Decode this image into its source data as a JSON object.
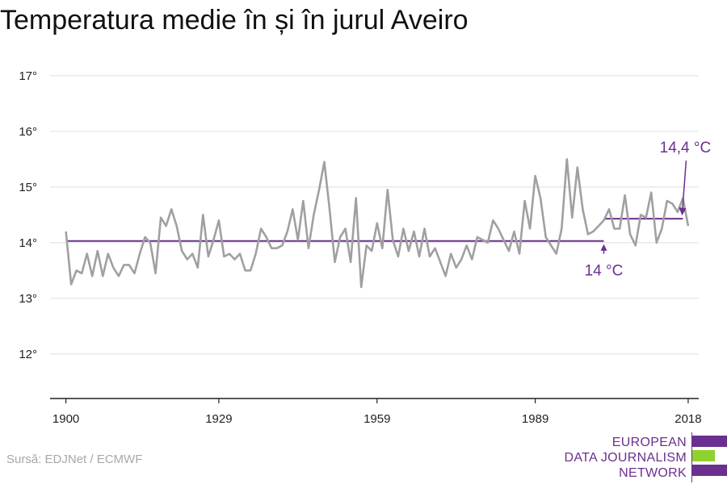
{
  "title": "Temperatura medie în și în jurul Aveiro",
  "source": "Sursă: EDJNet / ECMWF",
  "logo": {
    "lines": [
      "EUROPEAN",
      "DATA JOURNALISM",
      "NETWORK"
    ],
    "colors": {
      "purple": "#6b2f8f",
      "green": "#8fd12f"
    }
  },
  "chart_data": {
    "type": "line",
    "title": "Temperatura medie în și în jurul Aveiro",
    "xlabel": "",
    "ylabel": "",
    "xlim": [
      1897,
      2020
    ],
    "ylim": [
      11.2,
      17.2
    ],
    "x_ticks": [
      1900,
      1929,
      1959,
      1989,
      2018
    ],
    "x_tick_labels": [
      "1900",
      "1929",
      "1959",
      "1989",
      "2018"
    ],
    "y_ticks": [
      12,
      13,
      14,
      15,
      16,
      17
    ],
    "y_tick_labels": [
      "12°",
      "13°",
      "14°",
      "15°",
      "16°",
      "17°"
    ],
    "grid": "horizontal",
    "colors": {
      "series": "#a0a0a0",
      "annotation": "#6b2f8f"
    },
    "series": [
      {
        "x": [
          1900,
          1901,
          1902,
          1903,
          1904,
          1905,
          1906,
          1907,
          1908,
          1909,
          1910,
          1911,
          1912,
          1913,
          1914,
          1915,
          1916,
          1917,
          1918,
          1919,
          1920,
          1921,
          1922,
          1923,
          1924,
          1925,
          1926,
          1927,
          1928,
          1929,
          1930,
          1931,
          1932,
          1933,
          1934,
          1935,
          1936,
          1937,
          1938,
          1939,
          1940,
          1941,
          1942,
          1943,
          1944,
          1945,
          1946,
          1947,
          1948,
          1949,
          1950,
          1951,
          1952,
          1953,
          1954,
          1955,
          1956,
          1957,
          1958,
          1959,
          1960,
          1961,
          1962,
          1963,
          1964,
          1965,
          1966,
          1967,
          1968,
          1969,
          1970,
          1971,
          1972,
          1973,
          1974,
          1975,
          1976,
          1977,
          1978,
          1979,
          1980,
          1981,
          1982,
          1983,
          1984,
          1985,
          1986,
          1987,
          1988,
          1989,
          1990,
          1991,
          1992,
          1993,
          1994,
          1995,
          1996,
          1997,
          1998,
          1999,
          2000,
          2001,
          2002,
          2003,
          2004,
          2005,
          2006,
          2007,
          2008,
          2009,
          2010,
          2011,
          2012,
          2013,
          2014,
          2015,
          2016,
          2017,
          2018
        ],
        "y": [
          14.2,
          13.25,
          13.5,
          13.45,
          13.8,
          13.4,
          13.85,
          13.4,
          13.8,
          13.55,
          13.4,
          13.6,
          13.6,
          13.45,
          13.8,
          14.1,
          14.0,
          13.45,
          14.45,
          14.3,
          14.6,
          14.3,
          13.85,
          13.7,
          13.8,
          13.55,
          14.5,
          13.75,
          14.05,
          14.4,
          13.75,
          13.8,
          13.7,
          13.8,
          13.5,
          13.5,
          13.8,
          14.25,
          14.1,
          13.9,
          13.9,
          13.95,
          14.2,
          14.6,
          14.05,
          14.75,
          13.9,
          14.5,
          14.95,
          15.45,
          14.6,
          13.65,
          14.1,
          14.25,
          13.65,
          14.8,
          13.2,
          13.95,
          13.85,
          14.35,
          13.9,
          14.95,
          14.05,
          13.75,
          14.25,
          13.85,
          14.2,
          13.75,
          14.25,
          13.75,
          13.9,
          13.65,
          13.4,
          13.8,
          13.55,
          13.7,
          13.95,
          13.7,
          14.1,
          14.05,
          14.0,
          14.4,
          14.25,
          14.05,
          13.85,
          14.2,
          13.8,
          14.75,
          14.25,
          15.2,
          14.8,
          14.1,
          13.95,
          13.8,
          14.25,
          15.5,
          14.45,
          15.35,
          14.6,
          14.15,
          14.2,
          14.3,
          14.4,
          14.6,
          14.25,
          14.25,
          14.85,
          14.15,
          13.95,
          14.5,
          14.45,
          14.9,
          14.0,
          14.25,
          14.75,
          14.7,
          14.55,
          14.8,
          14.3
        ]
      }
    ],
    "reference_lines": [
      {
        "label": "14 °C",
        "value": 14.03,
        "x_start": 1900,
        "x_end": 2002
      },
      {
        "label": "14,4 °C",
        "value": 14.43,
        "x_start": 2002,
        "x_end": 2017
      }
    ]
  }
}
